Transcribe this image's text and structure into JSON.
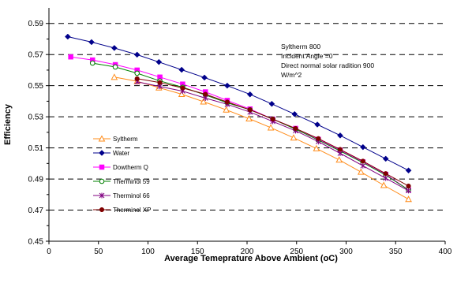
{
  "chart_data": {
    "type": "line",
    "xlabel": "Average Temeprature Above Ambient (oC)",
    "ylabel": "Efficiency",
    "xlim": [
      0,
      400
    ],
    "ylim": [
      0.45,
      0.6
    ],
    "x_ticks": [
      "0",
      "50",
      "100",
      "150",
      "200",
      "250",
      "300",
      "350",
      "400"
    ],
    "y_ticks": [
      "0.45",
      "0.47",
      "0.49",
      "0.51",
      "0.53",
      "0.55",
      "0.57",
      "0.59"
    ],
    "gridlines": "horizontal dashed",
    "legend_position": "left",
    "annotation": [
      "Syltherm 800",
      "Incident Angle =0",
      "Direct normal solar radition 900",
      "W/m^2"
    ],
    "series": [
      {
        "name": "Syltherm",
        "color": "#FF8C1A",
        "marker": "triangle-open",
        "x": [
          66,
          89,
          111,
          134,
          156,
          179,
          202,
          224,
          247,
          270,
          293,
          315,
          338,
          363
        ],
        "y": [
          0.5555,
          0.5528,
          0.5487,
          0.5445,
          0.5397,
          0.5345,
          0.5288,
          0.523,
          0.5165,
          0.5096,
          0.5023,
          0.4945,
          0.486,
          0.477
        ]
      },
      {
        "name": "Water",
        "color": "#00008B",
        "marker": "diamond",
        "x": [
          19,
          43,
          66,
          89,
          111,
          134,
          157,
          180,
          203,
          225,
          248,
          271,
          294,
          317,
          340,
          363
        ],
        "y": [
          0.5815,
          0.578,
          0.5742,
          0.5699,
          0.5652,
          0.5602,
          0.5552,
          0.55,
          0.5444,
          0.5383,
          0.5317,
          0.525,
          0.518,
          0.5105,
          0.503,
          0.4955
        ]
      },
      {
        "name": "Dowtherm Q",
        "color": "#FF00FF",
        "marker": "square",
        "x": [
          22,
          44,
          67,
          89,
          112,
          135,
          158,
          180,
          203,
          226,
          249,
          272,
          294,
          317,
          340,
          363
        ],
        "y": [
          0.5685,
          0.5665,
          0.5635,
          0.56,
          0.5555,
          0.551,
          0.546,
          0.5405,
          0.535,
          0.5285,
          0.5225,
          0.5155,
          0.5085,
          0.501,
          0.493,
          0.483
        ]
      },
      {
        "name": "Therminol 59",
        "color": "#008000",
        "marker": "circle-open",
        "x": [
          44,
          67,
          89,
          112,
          135,
          158,
          180,
          203,
          226,
          249,
          272,
          294,
          317,
          340,
          363
        ],
        "y": [
          0.5645,
          0.562,
          0.558,
          0.553,
          0.549,
          0.544,
          0.539,
          0.5345,
          0.5285,
          0.522,
          0.515,
          0.508,
          0.5005,
          0.4925,
          0.483
        ]
      },
      {
        "name": "Therminol 66",
        "color": "#800080",
        "marker": "star",
        "x": [
          89,
          112,
          135,
          158,
          180,
          203,
          226,
          249,
          272,
          294,
          317,
          340,
          363
        ],
        "y": [
          0.5525,
          0.5495,
          0.5465,
          0.542,
          0.538,
          0.533,
          0.527,
          0.521,
          0.514,
          0.5065,
          0.4985,
          0.4905,
          0.4825
        ]
      },
      {
        "name": "Therminol XP",
        "color": "#800000",
        "marker": "circle",
        "x": [
          89,
          112,
          135,
          158,
          180,
          203,
          226,
          249,
          272,
          294,
          317,
          340,
          363
        ],
        "y": [
          0.5545,
          0.552,
          0.5485,
          0.5445,
          0.5395,
          0.5345,
          0.5285,
          0.5225,
          0.516,
          0.509,
          0.5015,
          0.4935,
          0.4855
        ]
      }
    ]
  }
}
